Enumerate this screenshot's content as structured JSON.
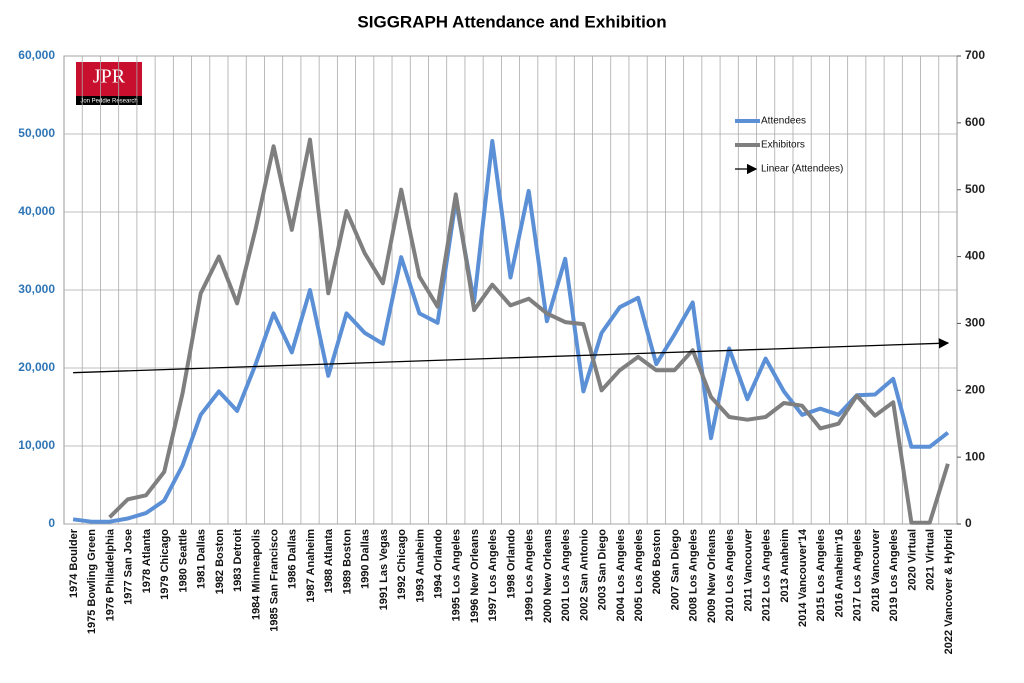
{
  "chart_data": {
    "type": "line",
    "title": "SIGGRAPH Attendance and Exhibition",
    "logo": {
      "text": "JPR",
      "subtitle": "Jon Peddie Research"
    },
    "categories": [
      "1974 Boulder",
      "1975 Bowling Green",
      "1976 Philadelphia",
      "1977 San Jose",
      "1978 Atlanta",
      "1979 Chicago",
      "1980 Seattle",
      "1981 Dallas",
      "1982 Boston",
      "1983 Detroit",
      "1984 Minneapolis",
      "1985 San Francisco",
      "1986 Dallas",
      "1987 Anaheim",
      "1988 Atlanta",
      "1989 Boston",
      "1990 Dallas",
      "1991 Las Vegas",
      "1992 Chicago",
      "1993 Anaheim",
      "1994 Orlando",
      "1995 Los Angeles",
      "1996 New Orleans",
      "1997 Los Angeles",
      "1998 Orlando",
      "1999 Los Angeles",
      "2000 New Orleans",
      "2001 Los Angeles",
      "2002 San Antonio",
      "2003 San Diego",
      "2004 Los Angeles",
      "2005 Los Angeles",
      "2006 Boston",
      "2007 San Diego",
      "2008 Los Angeles",
      "2009 New Orleans",
      "2010 Los Angeles",
      "2011 Vancouver",
      "2012 Los Angeles",
      "2013 Anaheim",
      "2014 Vancouver'14",
      "2015 Los Angeles",
      "2016 Anaheim'16",
      "2017 Los Angeles",
      "2018 Vancouver",
      "2019 Los Angeles",
      "2020 Virtual",
      "2021 Virtual",
      "2022 Vancover & Hybrid"
    ],
    "series": [
      {
        "name": "Attendees",
        "color": "#5b8fd6",
        "axis": "y",
        "values": [
          600,
          300,
          300,
          700,
          1400,
          3000,
          7500,
          14000,
          17000,
          14500,
          20400,
          27000,
          22000,
          30000,
          19000,
          27000,
          24500,
          23100,
          34200,
          27000,
          25800,
          41500,
          28500,
          49100,
          31600,
          42700,
          26000,
          34000,
          17000,
          24500,
          27800,
          29000,
          20500,
          24300,
          28400,
          11000,
          22500,
          16000,
          21200,
          17000,
          14000,
          14800,
          14000,
          16500,
          16600,
          18600,
          9900,
          9900,
          11700
        ]
      },
      {
        "name": "Exhibitors",
        "color": "#7f7f7f",
        "axis": "y2",
        "values": [
          null,
          null,
          10,
          37,
          43,
          78,
          195,
          345,
          400,
          330,
          440,
          565,
          440,
          575,
          345,
          468,
          405,
          360,
          500,
          370,
          325,
          493,
          320,
          358,
          327,
          337,
          315,
          302,
          299,
          200,
          230,
          250,
          230,
          230,
          260,
          190,
          160,
          156,
          160,
          181,
          177,
          143,
          150,
          192,
          162,
          182,
          2,
          2,
          90
        ]
      }
    ],
    "trendline": {
      "name": "Linear (Attendees)",
      "color": "#000000",
      "values": [
        19400,
        23200
      ]
    },
    "ylim": [
      0,
      60000
    ],
    "yticks": [
      0,
      {
        "value": 10000,
        "label": "10,000"
      },
      {
        "value": 20000,
        "label": "20,000"
      },
      {
        "value": 30000,
        "label": "30,000"
      },
      {
        "value": 40000,
        "label": "40,000"
      },
      {
        "value": 50000,
        "label": "50,000"
      },
      {
        "value": 60000,
        "label": "60,000"
      }
    ],
    "y2lim": [
      0,
      700
    ],
    "y2ticks": [
      0,
      100,
      200,
      300,
      400,
      500,
      600,
      700
    ],
    "grid": true
  }
}
